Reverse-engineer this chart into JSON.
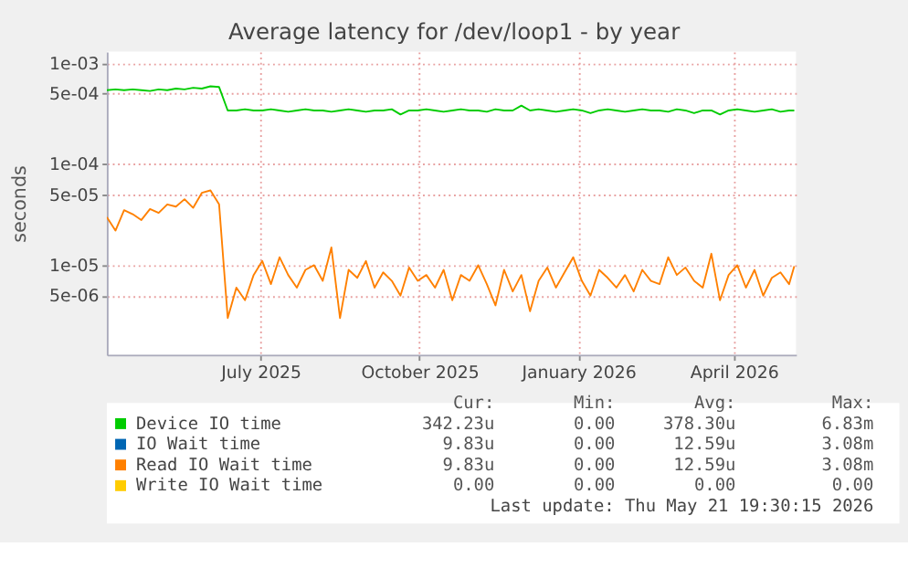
{
  "chart_data": {
    "type": "line",
    "title": "Average latency for /dev/loop1 - by year",
    "ylabel": "seconds",
    "log": true,
    "grid": true,
    "legend": "bottom",
    "x": [
      "2025-04-18",
      "2025-04-23",
      "2025-04-28",
      "2025-05-03",
      "2025-05-08",
      "2025-05-13",
      "2025-05-18",
      "2025-05-23",
      "2025-05-28",
      "2025-06-02",
      "2025-06-07",
      "2025-06-12",
      "2025-06-17",
      "2025-06-22",
      "2025-06-27",
      "2025-07-02",
      "2025-07-07",
      "2025-07-12",
      "2025-07-17",
      "2025-07-22",
      "2025-07-27",
      "2025-08-01",
      "2025-08-06",
      "2025-08-11",
      "2025-08-16",
      "2025-08-21",
      "2025-08-26",
      "2025-08-31",
      "2025-09-05",
      "2025-09-10",
      "2025-09-15",
      "2025-09-20",
      "2025-09-25",
      "2025-09-30",
      "2025-10-05",
      "2025-10-10",
      "2025-10-15",
      "2025-10-20",
      "2025-10-25",
      "2025-10-30",
      "2025-11-04",
      "2025-11-09",
      "2025-11-14",
      "2025-11-19",
      "2025-11-24",
      "2025-11-29",
      "2025-12-04",
      "2025-12-09",
      "2025-12-14",
      "2025-12-19",
      "2025-12-24",
      "2025-12-29",
      "2026-01-03",
      "2026-01-08",
      "2026-01-13",
      "2026-01-18",
      "2026-01-23",
      "2026-01-28",
      "2026-02-02",
      "2026-02-07",
      "2026-02-12",
      "2026-02-17",
      "2026-02-22",
      "2026-02-27",
      "2026-03-04",
      "2026-03-09",
      "2026-03-14",
      "2026-03-19",
      "2026-03-24",
      "2026-03-29",
      "2026-04-03",
      "2026-04-08",
      "2026-04-13",
      "2026-04-18",
      "2026-04-23",
      "2026-04-28",
      "2026-05-03",
      "2026-05-08",
      "2026-05-13",
      "2026-05-18",
      "2026-05-21"
    ],
    "xlim": [
      "2025-04-18",
      "2026-05-22"
    ],
    "xticks": [
      {
        "value": "2025-07-16",
        "label": "July 2025"
      },
      {
        "value": "2025-10-16",
        "label": "October 2025"
      },
      {
        "value": "2026-01-16",
        "label": "January 2026"
      },
      {
        "value": "2026-04-16",
        "label": "April 2026"
      }
    ],
    "ylim": [
      1.3e-06,
      0.0013
    ],
    "yticks": [
      {
        "value": 5e-06,
        "label": "5e-06"
      },
      {
        "value": 1e-05,
        "label": "1e-05"
      },
      {
        "value": 5e-05,
        "label": "5e-05"
      },
      {
        "value": 0.0001,
        "label": "1e-04"
      },
      {
        "value": 0.0005,
        "label": "5e-04"
      },
      {
        "value": 0.001,
        "label": "1e-03"
      }
    ],
    "series": [
      {
        "name": "Device IO time",
        "color": "#00cc00",
        "values": [
          0.00054,
          0.00055,
          0.00054,
          0.00055,
          0.00054,
          0.00053,
          0.00055,
          0.00054,
          0.00056,
          0.00055,
          0.00057,
          0.00056,
          0.00059,
          0.00058,
          0.00034,
          0.00034,
          0.00035,
          0.00034,
          0.00034,
          0.00035,
          0.00034,
          0.00033,
          0.00034,
          0.00035,
          0.00034,
          0.00034,
          0.00033,
          0.00034,
          0.00035,
          0.00034,
          0.00033,
          0.00034,
          0.00034,
          0.00035,
          0.00031,
          0.00034,
          0.00034,
          0.00035,
          0.00034,
          0.00033,
          0.00034,
          0.00035,
          0.00034,
          0.00034,
          0.00033,
          0.00035,
          0.00034,
          0.00034,
          0.00038,
          0.00034,
          0.00035,
          0.00034,
          0.00033,
          0.00034,
          0.00035,
          0.00034,
          0.00032,
          0.00034,
          0.00035,
          0.00034,
          0.00033,
          0.00034,
          0.00035,
          0.00034,
          0.00034,
          0.00033,
          0.00035,
          0.00034,
          0.00032,
          0.00034,
          0.00034,
          0.00031,
          0.00034,
          0.00035,
          0.00034,
          0.00033,
          0.00034,
          0.00035,
          0.00033,
          0.00034,
          0.00034
        ]
      },
      {
        "name": "IO Wait time",
        "color": "#0066b3",
        "values": [
          null,
          null,
          null,
          null,
          null,
          null,
          null,
          null,
          null,
          null,
          null,
          null,
          null,
          null,
          null,
          null,
          null,
          null,
          null,
          null,
          null,
          null,
          null,
          null,
          null,
          null,
          null,
          null,
          null,
          null,
          null,
          null,
          null,
          null,
          null,
          null,
          null,
          null,
          null,
          null,
          null,
          null,
          null,
          null,
          null,
          null,
          null,
          null,
          null,
          null,
          null,
          null,
          null,
          null,
          null,
          null,
          null,
          null,
          null,
          null,
          null,
          null,
          null,
          null,
          null,
          null,
          null,
          null,
          null,
          null,
          null,
          null,
          null,
          null,
          null,
          null,
          null,
          null,
          null,
          null,
          null
        ]
      },
      {
        "name": "Read IO Wait time",
        "color": "#ff8000",
        "values": [
          3e-05,
          2.2e-05,
          3.5e-05,
          3.2e-05,
          2.8e-05,
          3.6e-05,
          3.3e-05,
          4e-05,
          3.8e-05,
          4.5e-05,
          3.7e-05,
          5.2e-05,
          5.5e-05,
          4e-05,
          3e-06,
          6e-06,
          4.5e-06,
          8e-06,
          1.1e-05,
          6.5e-06,
          1.2e-05,
          8e-06,
          6e-06,
          9e-06,
          1e-05,
          7e-06,
          1.5e-05,
          3e-06,
          9e-06,
          7.5e-06,
          1.1e-05,
          6e-06,
          8.5e-06,
          7e-06,
          5e-06,
          9.5e-06,
          7e-06,
          8e-06,
          6e-06,
          9e-06,
          4.5e-06,
          8e-06,
          7e-06,
          1e-05,
          6.5e-06,
          4e-06,
          9e-06,
          5.5e-06,
          8e-06,
          3.5e-06,
          7e-06,
          9.5e-06,
          6e-06,
          8.5e-06,
          1.2e-05,
          7e-06,
          5e-06,
          9e-06,
          7.5e-06,
          6e-06,
          8e-06,
          5.5e-06,
          9e-06,
          7e-06,
          6.5e-06,
          1.2e-05,
          8e-06,
          9.5e-06,
          7e-06,
          6e-06,
          1.3e-05,
          4.5e-06,
          8e-06,
          1e-05,
          6e-06,
          9e-06,
          5e-06,
          7.5e-06,
          8.5e-06,
          6.5e-06,
          9.8e-06
        ]
      },
      {
        "name": "Write IO Wait time",
        "color": "#ffcc00",
        "values": [
          null,
          null,
          null,
          null,
          null,
          null,
          null,
          null,
          null,
          null,
          null,
          null,
          null,
          null,
          null,
          null,
          null,
          null,
          null,
          null,
          null,
          null,
          null,
          null,
          null,
          null,
          null,
          null,
          null,
          null,
          null,
          null,
          null,
          null,
          null,
          null,
          null,
          null,
          null,
          null,
          null,
          null,
          null,
          null,
          null,
          null,
          null,
          null,
          null,
          null,
          null,
          null,
          null,
          null,
          null,
          null,
          null,
          null,
          null,
          null,
          null,
          null,
          null,
          null,
          null,
          null,
          null,
          null,
          null,
          null,
          null,
          null,
          null,
          null,
          null,
          null,
          null,
          null,
          null,
          null,
          null
        ]
      }
    ],
    "annotations": [
      "Cur:",
      "Min:",
      "Avg:",
      "Max:",
      "342.23u",
      "0.00",
      "378.30u",
      "6.83m",
      "9.83u",
      "0.00",
      "12.59u",
      "3.08m",
      "9.83u",
      "0.00",
      "12.59u",
      "3.08m",
      "0.00",
      "0.00",
      "0.00",
      "0.00",
      "Last update: Thu May 21 19:30:15 2026"
    ]
  }
}
